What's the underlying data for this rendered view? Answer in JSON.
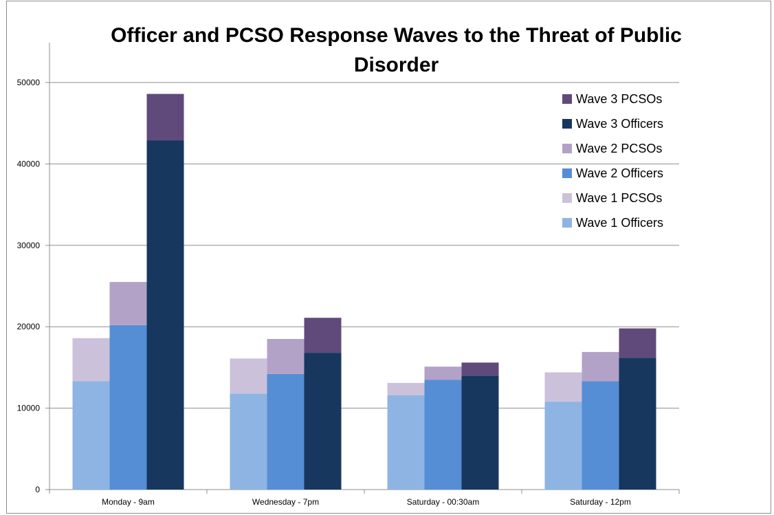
{
  "chart_data": {
    "type": "bar",
    "stacked": true,
    "title": "Officer and PCSO Response Waves to the Threat of Public Disorder",
    "xlabel": "",
    "ylabel": "",
    "ylim": [
      0,
      50000
    ],
    "yticks": [
      0,
      10000,
      20000,
      30000,
      40000,
      50000
    ],
    "grid": true,
    "legend_position": "top-right",
    "categories": [
      "Monday - 9am",
      "Wednesday - 7pm",
      "Saturday - 00:30am",
      "Saturday - 12pm"
    ],
    "waves": [
      {
        "officers": {
          "name": "Wave 1 Officers",
          "color": "#8eb4e3",
          "values": [
            13300,
            11800,
            11600,
            10800
          ]
        },
        "pcsos": {
          "name": "Wave 1 PCSOs",
          "color": "#ccc1da",
          "values": [
            5300,
            4300,
            1500,
            3600
          ]
        }
      },
      {
        "officers": {
          "name": "Wave 2 Officers",
          "color": "#558ed5",
          "values": [
            20200,
            14200,
            13500,
            13300
          ]
        },
        "pcsos": {
          "name": "Wave 2 PCSOs",
          "color": "#b3a2c7",
          "values": [
            5300,
            4300,
            1600,
            3600
          ]
        }
      },
      {
        "officers": {
          "name": "Wave 3 Officers",
          "color": "#17375e",
          "values": [
            42900,
            16800,
            14000,
            16200
          ]
        },
        "pcsos": {
          "name": "Wave 3 PCSOs",
          "color": "#604a7b",
          "values": [
            5700,
            4300,
            1600,
            3600
          ]
        }
      }
    ],
    "legend_order": [
      "Wave 3 PCSOs",
      "Wave 3 Officers",
      "Wave 2 PCSOs",
      "Wave 2 Officers",
      "Wave 1 PCSOs",
      "Wave 1 Officers"
    ]
  },
  "colors": {
    "gridline": "#8e8e8e",
    "axis": "#8e8e8e"
  }
}
